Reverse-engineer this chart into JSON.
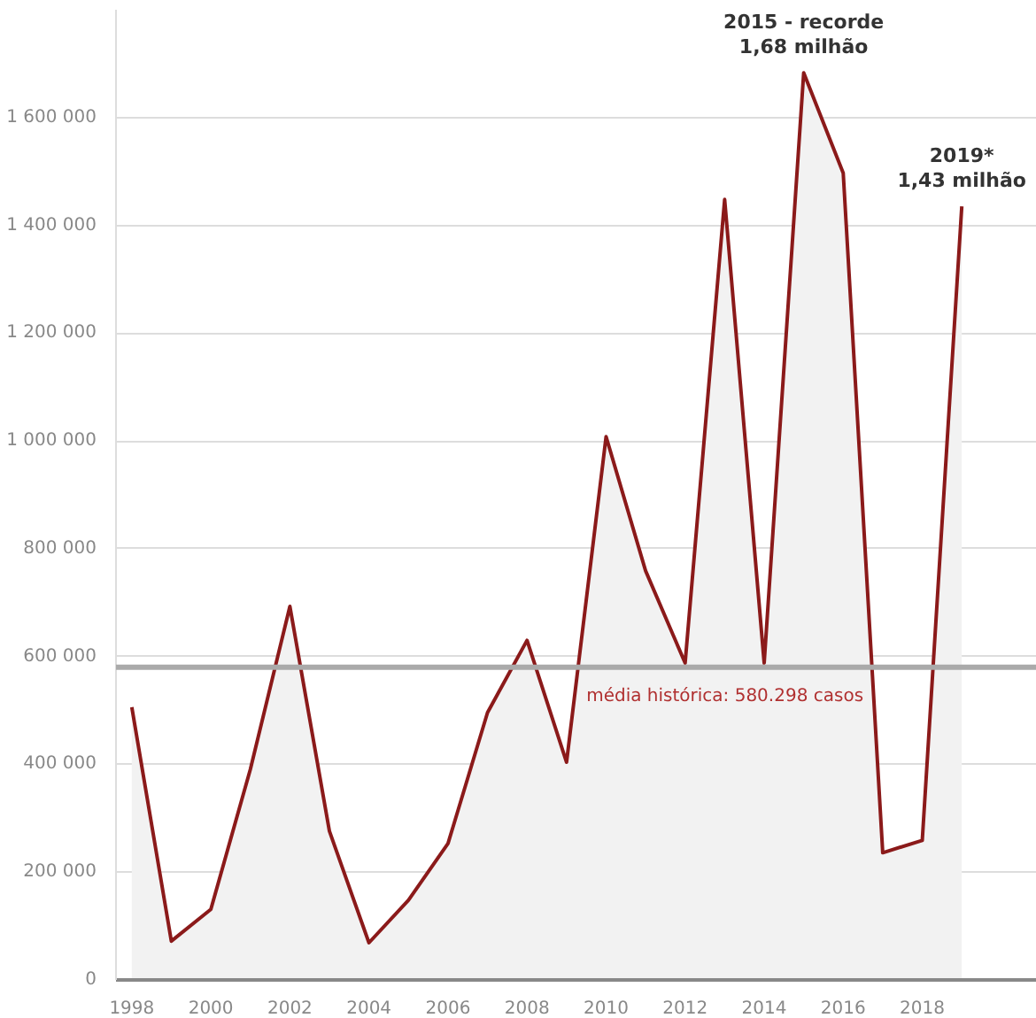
{
  "chart_data": {
    "type": "area",
    "x": [
      1998,
      1999,
      2000,
      2001,
      2002,
      2003,
      2004,
      2005,
      2006,
      2007,
      2008,
      2009,
      2010,
      2011,
      2012,
      2013,
      2014,
      2015,
      2016,
      2017,
      2018,
      2019
    ],
    "series": [
      {
        "color": "#8b1a1a",
        "values": [
          506000,
          72000,
          131000,
          391000,
          693000,
          276000,
          69000,
          148000,
          253000,
          496000,
          630000,
          404000,
          1008000,
          759000,
          588000,
          1448000,
          588000,
          1683000,
          1497000,
          236000,
          259000,
          1435000
        ]
      }
    ],
    "xlim": [
      1997.6,
      2020.9
    ],
    "xticks": [
      1998,
      2000,
      2002,
      2004,
      2006,
      2008,
      2010,
      2012,
      2014,
      2016,
      2018
    ],
    "ylim": [
      0,
      1800000
    ],
    "yticks": [
      {
        "value": 0,
        "label": "0"
      },
      {
        "value": 200000,
        "label": "200 000"
      },
      {
        "value": 400000,
        "label": "400 000"
      },
      {
        "value": 600000,
        "label": "600 000"
      },
      {
        "value": 800000,
        "label": "800 000"
      },
      {
        "value": 1000000,
        "label": "1 000 000"
      },
      {
        "value": 1200000,
        "label": "1 200 000"
      },
      {
        "value": 1400000,
        "label": "1 400 000"
      },
      {
        "value": 1600000,
        "label": "1 600 000"
      }
    ],
    "grid": "y",
    "marker": "none",
    "ref_lines": [
      {
        "axis": "y",
        "value": 580298,
        "label": "média histórica: 580.298 casos",
        "color": "#aaaaaa"
      }
    ],
    "annotations": [
      {
        "text": "2015 - recorde\n1,68 milhão",
        "x": 2015,
        "y": 1683000
      },
      {
        "text": "2019*\n1,43 milhão",
        "x": 2019,
        "y": 1435000
      }
    ]
  }
}
